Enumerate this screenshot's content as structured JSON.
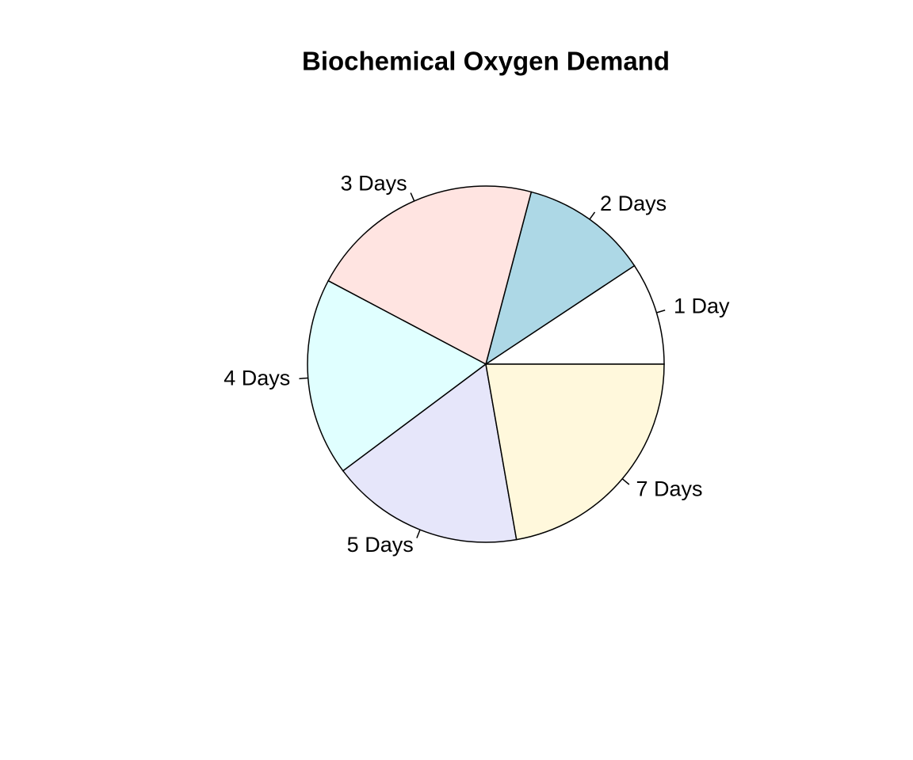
{
  "chart_data": {
    "type": "pie",
    "title": "Biochemical Oxygen Demand",
    "categories": [
      "1 Day",
      "2 Days",
      "3 Days",
      "4 Days",
      "5 Days",
      "7 Days"
    ],
    "values": [
      8.3,
      10.3,
      19.0,
      16.0,
      15.6,
      19.8
    ],
    "colors": [
      "#ffffff",
      "#add8e6",
      "#ffe4e1",
      "#e0ffff",
      "#e6e6fa",
      "#fff8dc"
    ]
  }
}
